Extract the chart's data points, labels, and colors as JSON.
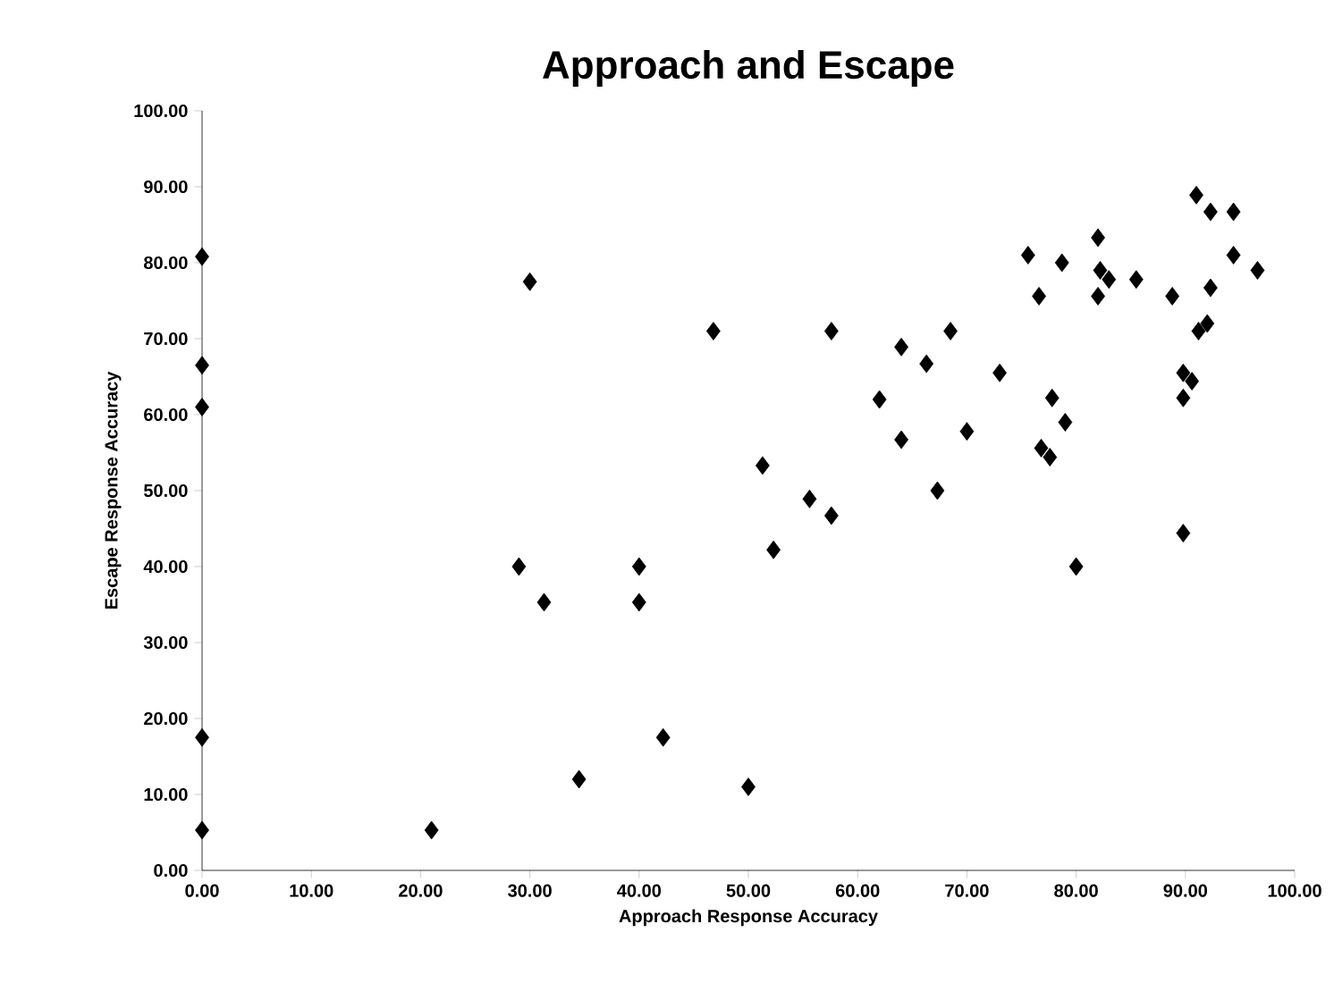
{
  "chart_data": {
    "type": "scatter",
    "title": "Approach and Escape",
    "xlabel": "Approach Response Accuracy",
    "ylabel": "Escape Response Accuracy",
    "x": [
      0,
      0,
      0,
      0,
      0,
      21,
      29,
      30,
      31.3,
      34.5,
      40,
      40,
      42.2,
      46.8,
      50,
      51.3,
      52.3,
      55.6,
      57.6,
      57.6,
      62,
      64,
      64,
      66.3,
      67.3,
      68.5,
      70,
      73,
      75.6,
      76.6,
      76.8,
      77.6,
      77.8,
      78.7,
      79,
      80,
      82,
      82.2,
      82,
      83,
      85.5,
      88.8,
      89.8,
      89.8,
      89.8,
      90.6,
      91,
      91.2,
      92,
      92.3,
      92.3,
      94.4,
      94.4,
      96.6
    ],
    "series": [
      {
        "color": "#000000",
        "values": [
          80.8,
          66.5,
          61,
          17.5,
          5.3,
          5.3,
          40,
          77.5,
          35.3,
          12,
          40,
          35.3,
          17.5,
          71,
          11,
          53.3,
          42.2,
          48.9,
          71,
          46.7,
          62,
          56.7,
          68.9,
          66.7,
          50,
          71,
          57.8,
          65.5,
          81,
          75.6,
          55.6,
          54.4,
          62.2,
          80,
          59,
          40,
          83.3,
          79,
          75.6,
          77.8,
          77.8,
          75.6,
          65.5,
          62.2,
          44.4,
          64.4,
          88.9,
          71,
          72,
          86.7,
          76.7,
          81,
          86.7,
          79
        ]
      }
    ],
    "xlim": [
      0,
      100
    ],
    "ylim": [
      0,
      100
    ],
    "xticks": [
      {
        "value": 0,
        "label": "0.00"
      },
      {
        "value": 10,
        "label": "10.00"
      },
      {
        "value": 20,
        "label": "20.00"
      },
      {
        "value": 30,
        "label": "30.00"
      },
      {
        "value": 40,
        "label": "40.00"
      },
      {
        "value": 50,
        "label": "50.00"
      },
      {
        "value": 60,
        "label": "60.00"
      },
      {
        "value": 70,
        "label": "70.00"
      },
      {
        "value": 80,
        "label": "80.00"
      },
      {
        "value": 90,
        "label": "90.00"
      },
      {
        "value": 100,
        "label": "100.00"
      }
    ],
    "yticks": [
      {
        "value": 0,
        "label": "0.00"
      },
      {
        "value": 10,
        "label": "10.00"
      },
      {
        "value": 20,
        "label": "20.00"
      },
      {
        "value": 30,
        "label": "30.00"
      },
      {
        "value": 40,
        "label": "40.00"
      },
      {
        "value": 50,
        "label": "50.00"
      },
      {
        "value": 60,
        "label": "60.00"
      },
      {
        "value": 70,
        "label": "70.00"
      },
      {
        "value": 80,
        "label": "80.00"
      },
      {
        "value": 90,
        "label": "90.00"
      },
      {
        "value": 100,
        "label": "100.00"
      }
    ],
    "marker": "diamond"
  }
}
